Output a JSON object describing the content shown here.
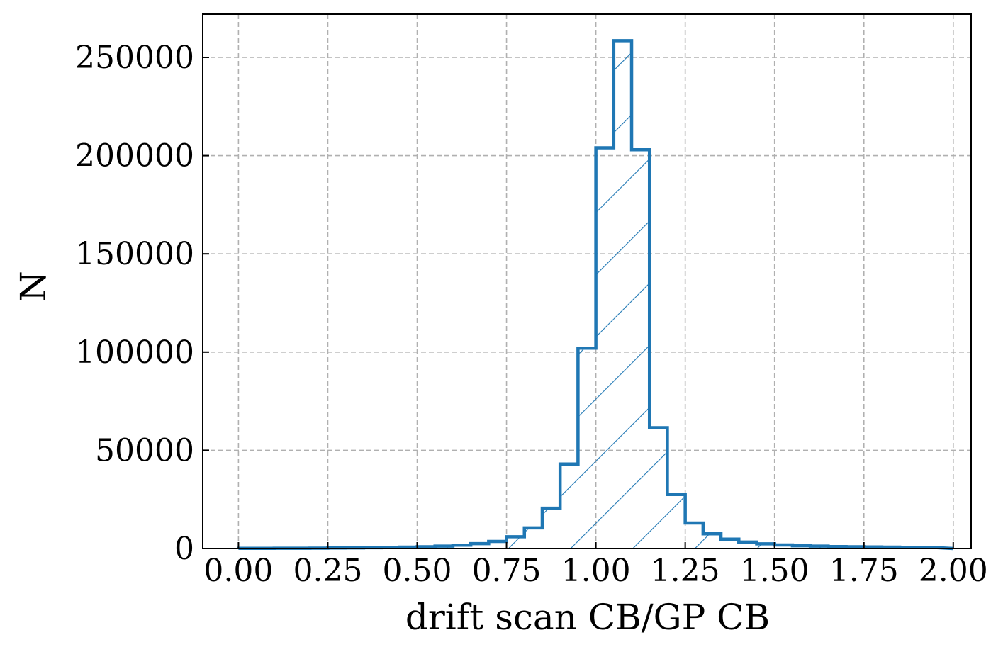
{
  "chart_data": {
    "type": "bar",
    "title": "",
    "xlabel": "drift scan CB/GP CB",
    "ylabel": "N",
    "xlim": [
      -0.1,
      2.05
    ],
    "ylim": [
      0,
      272000
    ],
    "grid": true,
    "histtype": "step-hatched",
    "color": "#1f77b4",
    "xticks": [
      {
        "value": 0.0,
        "label": "0.00"
      },
      {
        "value": 0.25,
        "label": "0.25"
      },
      {
        "value": 0.5,
        "label": "0.50"
      },
      {
        "value": 0.75,
        "label": "0.75"
      },
      {
        "value": 1.0,
        "label": "1.00"
      },
      {
        "value": 1.25,
        "label": "1.25"
      },
      {
        "value": 1.5,
        "label": "1.50"
      },
      {
        "value": 1.75,
        "label": "1.75"
      },
      {
        "value": 2.0,
        "label": "2.00"
      }
    ],
    "yticks": [
      {
        "value": 0,
        "label": "0"
      },
      {
        "value": 50000,
        "label": "50000"
      },
      {
        "value": 100000,
        "label": "100000"
      },
      {
        "value": 150000,
        "label": "150000"
      },
      {
        "value": 200000,
        "label": "200000"
      },
      {
        "value": 250000,
        "label": "250000"
      }
    ],
    "bin_edges": [
      0.0,
      0.05,
      0.1,
      0.15,
      0.2,
      0.25,
      0.3,
      0.35,
      0.4,
      0.45,
      0.5,
      0.55,
      0.6,
      0.65,
      0.7,
      0.75,
      0.8,
      0.85,
      0.9,
      0.95,
      1.0,
      1.05,
      1.1,
      1.15,
      1.2,
      1.25,
      1.3,
      1.35,
      1.4,
      1.45,
      1.5,
      1.55,
      1.6,
      1.65,
      1.7,
      1.75,
      1.8,
      1.85,
      1.9,
      1.95
    ],
    "values": [
      100,
      100,
      150,
      150,
      200,
      250,
      300,
      400,
      500,
      700,
      900,
      1200,
      1700,
      2500,
      3600,
      6000,
      10500,
      20500,
      43000,
      102000,
      204000,
      258500,
      203000,
      61500,
      27500,
      13000,
      7500,
      4800,
      3300,
      2400,
      1800,
      1400,
      1200,
      1000,
      900,
      800,
      700,
      600,
      500
    ]
  }
}
